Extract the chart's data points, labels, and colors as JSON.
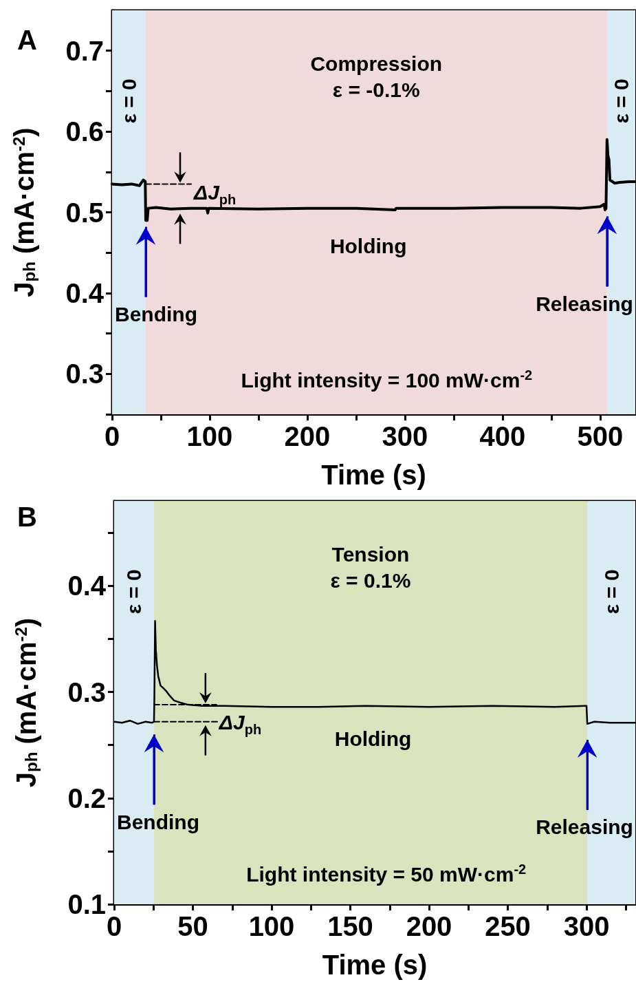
{
  "chart_data": [
    {
      "type": "line",
      "title": "A",
      "xlabel": "Time (s)",
      "ylabel": "J$_{ph}$ (mA·cm$^{-2}$)",
      "marker": "none",
      "xlim": [
        0,
        536
      ],
      "ylim": [
        0.25,
        0.75
      ],
      "xticks": [
        0,
        {
          "value": 50,
          "label": null
        },
        100,
        {
          "value": 150,
          "label": null
        },
        200,
        {
          "value": 250,
          "label": null
        },
        300,
        {
          "value": 350,
          "label": null
        },
        400,
        {
          "value": 450,
          "label": null
        },
        500
      ],
      "yticks": [
        {
          "value": 0.25,
          "label": null
        },
        0.3,
        {
          "value": 0.35,
          "label": null
        },
        0.4,
        {
          "value": 0.45,
          "label": null
        },
        0.5,
        {
          "value": 0.55,
          "label": null
        },
        0.6,
        {
          "value": 0.65,
          "label": null
        },
        0.7
      ],
      "bands": [
        {
          "axis": "x",
          "from": 0,
          "to": 34.5,
          "label": "ε = 0",
          "color": "#d9ecf3"
        },
        {
          "axis": "x",
          "from": 34.5,
          "to": 507,
          "label": "Compression\nε = -0.1%",
          "color": "#f1dadb"
        },
        {
          "axis": "x",
          "from": 507,
          "to": 536,
          "label": "ε = 0",
          "color": "#d9ecf3"
        }
      ],
      "series": [
        {
          "color": "#000000",
          "x": [
            0,
            10,
            20,
            28,
            32,
            34,
            34.5,
            36,
            37,
            45,
            60,
            80,
            97,
            98,
            99,
            150,
            200,
            250,
            290,
            291,
            350,
            400,
            450,
            480,
            500,
            504,
            505,
            506,
            507,
            508,
            509,
            510,
            515,
            520,
            530,
            536
          ],
          "values": [
            0.535,
            0.534,
            0.535,
            0.533,
            0.54,
            0.538,
            0.49,
            0.49,
            0.505,
            0.506,
            0.504,
            0.505,
            0.505,
            0.499,
            0.505,
            0.504,
            0.505,
            0.505,
            0.503,
            0.505,
            0.505,
            0.506,
            0.506,
            0.505,
            0.507,
            0.51,
            0.503,
            0.505,
            0.59,
            0.57,
            0.565,
            0.54,
            0.536,
            0.537,
            0.538,
            0.538
          ]
        },
        {
          "color": "#000000",
          "line_style": "dashed",
          "x": [
            34.5,
            81
          ],
          "values": [
            0.535,
            0.535
          ]
        }
      ],
      "annotations": [
        {
          "text": "Bending",
          "x": 34.5,
          "y": 0.482
        },
        {
          "text": "Releasing",
          "x": 507,
          "y": 0.495
        },
        "ΔJ$_{ph}$",
        "Holding",
        "Light intensity = 100 mW·cm$^{-2}$"
      ]
    },
    {
      "type": "line",
      "title": "B",
      "xlabel": "Time (s)",
      "ylabel": "J$_{ph}$ (mA·cm$^{-2}$)",
      "marker": "none",
      "xlim": [
        0,
        331
      ],
      "ylim": [
        0.1,
        0.48
      ],
      "xticks": [
        0,
        {
          "value": 25,
          "label": null
        },
        50,
        {
          "value": 75,
          "label": null
        },
        100,
        {
          "value": 125,
          "label": null
        },
        150,
        {
          "value": 175,
          "label": null
        },
        200,
        {
          "value": 225,
          "label": null
        },
        250,
        {
          "value": 275,
          "label": null
        },
        300,
        {
          "value": 325,
          "label": null
        }
      ],
      "yticks": [
        0.1,
        {
          "value": 0.15,
          "label": null
        },
        0.2,
        {
          "value": 0.25,
          "label": null
        },
        0.3,
        {
          "value": 0.35,
          "label": null
        },
        0.4,
        {
          "value": 0.45,
          "label": null
        }
      ],
      "bands": [
        {
          "axis": "x",
          "from": 0,
          "to": 25.3,
          "label": "ε = 0",
          "color": "#d9ecf3"
        },
        {
          "axis": "x",
          "from": 25.3,
          "to": 300.5,
          "label": "Tension\nε = 0.1%",
          "color": "#d9e3be"
        },
        {
          "axis": "x",
          "from": 300.5,
          "to": 331,
          "label": "ε = 0",
          "color": "#d9ecf3"
        }
      ],
      "series": [
        {
          "color": "#000000",
          "x": [
            0,
            5,
            10,
            15,
            20,
            24,
            25.3,
            25.5,
            26,
            26.5,
            27.2,
            28,
            29.5,
            31,
            33,
            35,
            38,
            42,
            47,
            55,
            70,
            100,
            130,
            160,
            200,
            240,
            280,
            299,
            300,
            300.5,
            305,
            315,
            325,
            331
          ],
          "values": [
            0.272,
            0.271,
            0.273,
            0.27,
            0.272,
            0.271,
            0.272,
            0.288,
            0.367,
            0.34,
            0.325,
            0.315,
            0.306,
            0.304,
            0.301,
            0.297,
            0.292,
            0.29,
            0.288,
            0.287,
            0.287,
            0.286,
            0.286,
            0.287,
            0.286,
            0.287,
            0.286,
            0.287,
            0.287,
            0.27,
            0.272,
            0.271,
            0.271,
            0.271
          ]
        },
        {
          "color": "#000000",
          "line_style": "dashed",
          "x": [
            25.3,
            65
          ],
          "values": [
            0.288,
            0.288
          ]
        },
        {
          "color": "#000000",
          "line_style": "dashed",
          "x": [
            25.3,
            67
          ],
          "values": [
            0.272,
            0.272
          ]
        }
      ],
      "annotations": [
        {
          "text": "Bending",
          "x": 25.3,
          "y": 0.26
        },
        {
          "text": "Releasing",
          "x": 300.5,
          "y": 0.255
        },
        "ΔJ$_{ph}$",
        "Holding",
        "Light intensity = 50 mW·cm$^{-2}$"
      ]
    }
  ]
}
